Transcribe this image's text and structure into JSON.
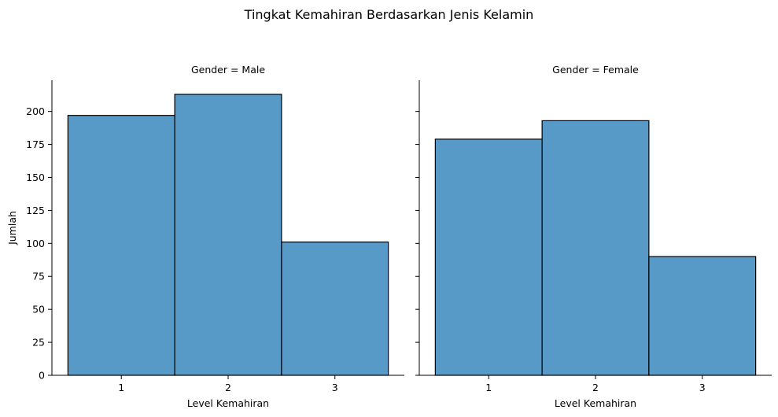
{
  "suptitle": "Tingkat Kemahiran Berdasarkan Jenis Kelamin",
  "bar_color": "#5799c7",
  "edge_color": "#000000",
  "chart_data": [
    {
      "type": "bar",
      "title": "Gender = Male",
      "xlabel": "Level Kemahiran",
      "ylabel": "Jumlah",
      "categories": [
        "1",
        "2",
        "3"
      ],
      "values": [
        197,
        213,
        101
      ],
      "ylim": [
        0,
        223.65
      ],
      "yticks": [
        "0",
        "25",
        "50",
        "75",
        "100",
        "125",
        "150",
        "175",
        "200"
      ],
      "grid": false
    },
    {
      "type": "bar",
      "title": "Gender = Female",
      "xlabel": "Level Kemahiran",
      "ylabel": "",
      "categories": [
        "1",
        "2",
        "3"
      ],
      "values": [
        179,
        193,
        90
      ],
      "ylim": [
        0,
        223.65
      ],
      "yticks": [
        "0",
        "25",
        "50",
        "75",
        "100",
        "125",
        "150",
        "175",
        "200"
      ],
      "grid": false
    }
  ]
}
